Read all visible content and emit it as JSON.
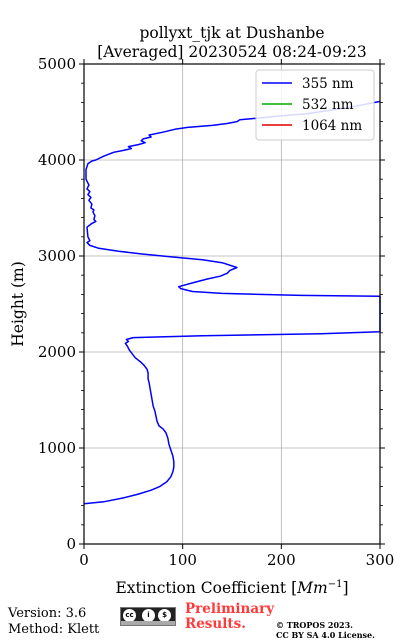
{
  "chart_data": {
    "type": "line",
    "title": "pollyxt_tjk at Dushanbe",
    "subtitle": "[Averaged] 20230524 08:24-09:23",
    "xlabel_prefix": "Extinction Coefficient [",
    "xlabel_unit": "Mm",
    "xlabel_exp": "−1",
    "xlabel_suffix": "]",
    "ylabel": "Height (m)",
    "xlim": [
      0,
      300
    ],
    "ylim": [
      0,
      5000
    ],
    "x_ticks": [
      0,
      100,
      200,
      300
    ],
    "y_ticks": [
      0,
      1000,
      2000,
      3000,
      4000,
      5000
    ],
    "grid": true,
    "legend_position": "top-right",
    "series": [
      {
        "name": "355 nm",
        "color": "#0000ff",
        "points": [
          [
            0,
            420
          ],
          [
            20,
            440
          ],
          [
            40,
            480
          ],
          [
            55,
            520
          ],
          [
            68,
            560
          ],
          [
            77,
            600
          ],
          [
            84,
            650
          ],
          [
            88,
            700
          ],
          [
            90,
            750
          ],
          [
            91,
            800
          ],
          [
            91,
            860
          ],
          [
            90,
            920
          ],
          [
            88,
            980
          ],
          [
            86,
            1040
          ],
          [
            85,
            1100
          ],
          [
            83,
            1160
          ],
          [
            80,
            1200
          ],
          [
            76,
            1230
          ],
          [
            74,
            1280
          ],
          [
            73,
            1330
          ],
          [
            72,
            1380
          ],
          [
            70,
            1440
          ],
          [
            69,
            1500
          ],
          [
            68,
            1560
          ],
          [
            67,
            1620
          ],
          [
            66,
            1680
          ],
          [
            65,
            1720
          ],
          [
            65,
            1780
          ],
          [
            64,
            1820
          ],
          [
            61,
            1860
          ],
          [
            57,
            1900
          ],
          [
            52,
            1940
          ],
          [
            49,
            1980
          ],
          [
            46,
            2020
          ],
          [
            44,
            2060
          ],
          [
            42,
            2090
          ],
          [
            45,
            2110
          ],
          [
            43,
            2130
          ],
          [
            50,
            2150
          ],
          [
            120,
            2170
          ],
          [
            240,
            2190
          ],
          [
            300,
            2210
          ],
          [
            300,
            2580
          ],
          [
            220,
            2590
          ],
          [
            140,
            2610
          ],
          [
            110,
            2630
          ],
          [
            98,
            2660
          ],
          [
            96,
            2680
          ],
          [
            110,
            2720
          ],
          [
            125,
            2760
          ],
          [
            138,
            2790
          ],
          [
            145,
            2820
          ],
          [
            148,
            2850
          ],
          [
            155,
            2880
          ],
          [
            140,
            2930
          ],
          [
            120,
            2960
          ],
          [
            90,
            2990
          ],
          [
            60,
            3020
          ],
          [
            35,
            3050
          ],
          [
            15,
            3080
          ],
          [
            6,
            3110
          ],
          [
            3,
            3140
          ],
          [
            6,
            3160
          ],
          [
            4,
            3200
          ],
          [
            3,
            3300
          ],
          [
            8,
            3340
          ],
          [
            12,
            3360
          ],
          [
            10,
            3380
          ],
          [
            11,
            3420
          ],
          [
            9,
            3460
          ],
          [
            10,
            3480
          ],
          [
            7,
            3500
          ],
          [
            8,
            3540
          ],
          [
            5,
            3580
          ],
          [
            7,
            3610
          ],
          [
            4,
            3640
          ],
          [
            6,
            3670
          ],
          [
            3,
            3700
          ],
          [
            5,
            3740
          ],
          [
            2,
            3800
          ],
          [
            2,
            3900
          ],
          [
            4,
            3960
          ],
          [
            8,
            3990
          ],
          [
            12,
            4000
          ],
          [
            20,
            4040
          ],
          [
            30,
            4080
          ],
          [
            40,
            4100
          ],
          [
            48,
            4120
          ],
          [
            45,
            4140
          ],
          [
            55,
            4160
          ],
          [
            62,
            4180
          ],
          [
            58,
            4200
          ],
          [
            60,
            4220
          ],
          [
            68,
            4240
          ],
          [
            66,
            4260
          ],
          [
            80,
            4290
          ],
          [
            92,
            4320
          ],
          [
            105,
            4340
          ],
          [
            130,
            4360
          ],
          [
            145,
            4380
          ],
          [
            155,
            4400
          ],
          [
            158,
            4420
          ],
          [
            180,
            4440
          ],
          [
            200,
            4460
          ],
          [
            225,
            4480
          ],
          [
            250,
            4520
          ],
          [
            270,
            4550
          ],
          [
            285,
            4580
          ],
          [
            295,
            4600
          ],
          [
            300,
            4610
          ]
        ]
      },
      {
        "name": "532 nm",
        "color": "#00aa00",
        "points": []
      },
      {
        "name": "1064 nm",
        "color": "#dd0000",
        "points": []
      }
    ]
  },
  "footer": {
    "version": "Version: 3.6",
    "method": "Method: Klett",
    "preliminary_line1": "Preliminary",
    "preliminary_line2": "Results.",
    "copyright_line1": "© TROPOS 2023.",
    "copyright_line2": "CC BY SA 4.0 License."
  },
  "license_badge": {
    "symbols": [
      "cc",
      "i",
      "$",
      "⊘"
    ],
    "icon": "cc-by-license-icon"
  }
}
